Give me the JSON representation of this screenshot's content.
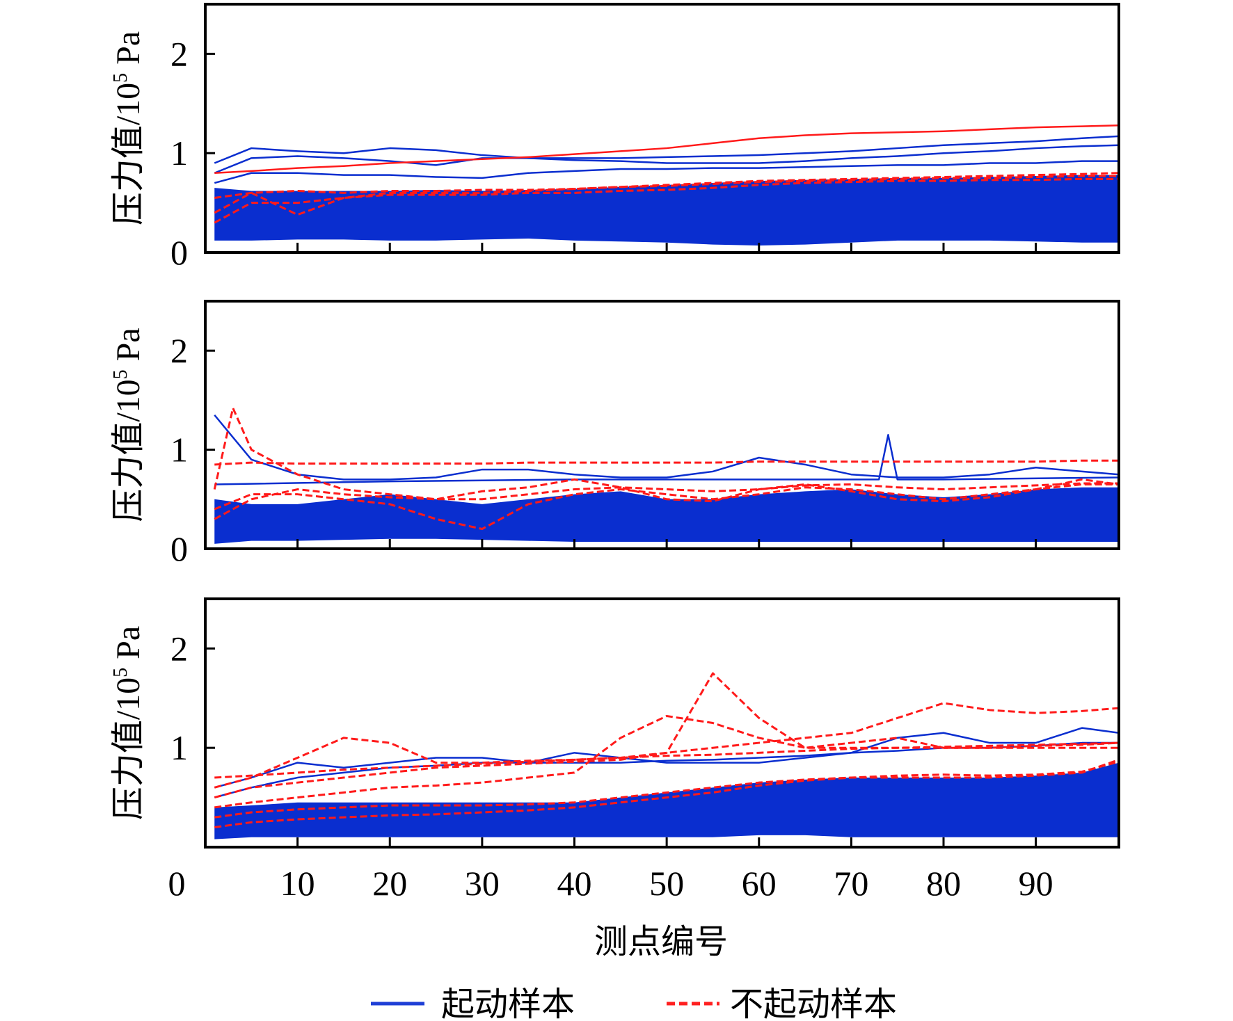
{
  "chart_data": {
    "type": "line",
    "xlabel": "测点编号",
    "ylabel_parts": [
      "压力值/10",
      "5",
      " Pa"
    ],
    "xlim": [
      0,
      99
    ],
    "ylim": [
      0,
      2.5
    ],
    "x_ticks": [
      "0",
      "10",
      "20",
      "30",
      "40",
      "50",
      "60",
      "70",
      "80",
      "90"
    ],
    "x_tick_values": [
      0,
      10,
      20,
      30,
      40,
      50,
      60,
      70,
      80,
      90
    ],
    "y_tick_labels": [
      "0",
      "1",
      "2"
    ],
    "legend": [
      {
        "label": "起动样本",
        "color": "#1f3fd6",
        "style": "solid"
      },
      {
        "label": "不起动样本",
        "color": "#ff2020",
        "style": "dashed"
      }
    ],
    "legend_position": "bottom-center",
    "colors": {
      "start": "#0a2ecf",
      "nostart": "#ff1a1a"
    },
    "x": [
      1,
      5,
      10,
      15,
      20,
      25,
      30,
      35,
      40,
      45,
      50,
      55,
      60,
      65,
      70,
      75,
      80,
      85,
      90,
      95,
      99
    ],
    "panels": [
      {
        "blue_band": {
          "lower": [
            0.12,
            0.12,
            0.13,
            0.13,
            0.12,
            0.12,
            0.13,
            0.14,
            0.12,
            0.11,
            0.1,
            0.08,
            0.07,
            0.08,
            0.1,
            0.12,
            0.12,
            0.12,
            0.11,
            0.1,
            0.1
          ],
          "upper": [
            0.65,
            0.62,
            0.62,
            0.62,
            0.62,
            0.63,
            0.62,
            0.63,
            0.64,
            0.66,
            0.68,
            0.7,
            0.72,
            0.73,
            0.74,
            0.75,
            0.75,
            0.76,
            0.77,
            0.78,
            0.78
          ]
        },
        "blue_lines": [
          {
            "y": [
              0.9,
              1.05,
              1.02,
              1.0,
              1.05,
              1.03,
              0.98,
              0.95,
              0.95,
              0.95,
              0.96,
              0.97,
              0.98,
              1.0,
              1.02,
              1.05,
              1.08,
              1.1,
              1.12,
              1.15,
              1.17
            ]
          },
          {
            "y": [
              0.8,
              0.95,
              0.97,
              0.95,
              0.92,
              0.88,
              0.95,
              0.95,
              0.93,
              0.92,
              0.9,
              0.9,
              0.9,
              0.92,
              0.95,
              0.97,
              1.0,
              1.02,
              1.05,
              1.07,
              1.08
            ]
          },
          {
            "y": [
              0.7,
              0.8,
              0.8,
              0.78,
              0.78,
              0.76,
              0.75,
              0.8,
              0.82,
              0.84,
              0.84,
              0.85,
              0.85,
              0.86,
              0.87,
              0.88,
              0.88,
              0.9,
              0.9,
              0.92,
              0.92
            ]
          }
        ],
        "red_lines": [
          {
            "y": [
              0.8,
              0.82,
              0.85,
              0.87,
              0.9,
              0.92,
              0.94,
              0.96,
              0.99,
              1.02,
              1.05,
              1.1,
              1.15,
              1.18,
              1.2,
              1.21,
              1.22,
              1.24,
              1.26,
              1.27,
              1.28
            ]
          },
          {
            "y": [
              0.55,
              0.6,
              0.62,
              0.6,
              0.62,
              0.62,
              0.63,
              0.63,
              0.64,
              0.66,
              0.68,
              0.7,
              0.72,
              0.73,
              0.74,
              0.75,
              0.76,
              0.77,
              0.78,
              0.79,
              0.8
            ]
          },
          {
            "y": [
              0.4,
              0.6,
              0.38,
              0.55,
              0.6,
              0.6,
              0.6,
              0.62,
              0.64,
              0.66,
              0.67,
              0.69,
              0.71,
              0.72,
              0.73,
              0.74,
              0.75,
              0.75,
              0.76,
              0.77,
              0.77
            ]
          },
          {
            "y": [
              0.3,
              0.5,
              0.5,
              0.55,
              0.58,
              0.58,
              0.58,
              0.6,
              0.6,
              0.62,
              0.63,
              0.65,
              0.68,
              0.7,
              0.71,
              0.72,
              0.72,
              0.73,
              0.73,
              0.74,
              0.74
            ]
          }
        ]
      },
      {
        "blue_band": {
          "lower": [
            0.05,
            0.08,
            0.08,
            0.09,
            0.1,
            0.1,
            0.09,
            0.08,
            0.07,
            0.07,
            0.07,
            0.07,
            0.07,
            0.07,
            0.07,
            0.07,
            0.07,
            0.07,
            0.07,
            0.07,
            0.07
          ],
          "upper": [
            0.5,
            0.45,
            0.45,
            0.5,
            0.55,
            0.5,
            0.45,
            0.5,
            0.55,
            0.58,
            0.5,
            0.5,
            0.55,
            0.58,
            0.6,
            0.55,
            0.52,
            0.55,
            0.6,
            0.62,
            0.62
          ]
        },
        "blue_lines": [
          {
            "y": [
              1.35,
              0.9,
              0.75,
              0.7,
              0.7,
              0.72,
              0.8,
              0.8,
              0.75,
              0.72,
              0.72,
              0.78,
              0.92,
              0.85,
              0.75,
              0.72,
              0.72,
              0.75,
              0.82,
              0.78,
              0.75
            ]
          },
          {
            "x": [
              1,
              20,
              40,
              60,
              70,
              73,
              74,
              75,
              80,
              99
            ],
            "y": [
              0.65,
              0.68,
              0.7,
              0.7,
              0.7,
              0.7,
              1.15,
              0.7,
              0.7,
              0.72
            ]
          }
        ],
        "red_lines": [
          {
            "y": [
              0.85,
              0.87,
              0.86,
              0.86,
              0.86,
              0.86,
              0.86,
              0.87,
              0.87,
              0.87,
              0.87,
              0.87,
              0.88,
              0.88,
              0.88,
              0.88,
              0.88,
              0.88,
              0.88,
              0.89,
              0.89
            ]
          },
          {
            "x": [
              1,
              3,
              5,
              10,
              15,
              20,
              25,
              30,
              35,
              40,
              45,
              50,
              55,
              60,
              65,
              70,
              75,
              80,
              85,
              90,
              95,
              99
            ],
            "y": [
              0.6,
              1.42,
              1.0,
              0.75,
              0.6,
              0.55,
              0.5,
              0.58,
              0.62,
              0.7,
              0.62,
              0.5,
              0.48,
              0.6,
              0.65,
              0.58,
              0.5,
              0.48,
              0.52,
              0.6,
              0.7,
              0.65
            ]
          },
          {
            "y": [
              0.4,
              0.55,
              0.55,
              0.5,
              0.45,
              0.3,
              0.2,
              0.45,
              0.55,
              0.6,
              0.55,
              0.5,
              0.55,
              0.62,
              0.6,
              0.55,
              0.5,
              0.55,
              0.6,
              0.65,
              0.65
            ]
          },
          {
            "y": [
              0.3,
              0.5,
              0.6,
              0.55,
              0.52,
              0.5,
              0.5,
              0.55,
              0.6,
              0.62,
              0.6,
              0.58,
              0.6,
              0.64,
              0.65,
              0.62,
              0.6,
              0.62,
              0.64,
              0.66,
              0.66
            ]
          }
        ]
      },
      {
        "blue_band": {
          "lower": [
            0.08,
            0.1,
            0.1,
            0.1,
            0.1,
            0.1,
            0.1,
            0.1,
            0.1,
            0.1,
            0.1,
            0.1,
            0.12,
            0.12,
            0.1,
            0.1,
            0.1,
            0.1,
            0.1,
            0.1,
            0.1
          ],
          "upper": [
            0.4,
            0.42,
            0.45,
            0.45,
            0.45,
            0.45,
            0.45,
            0.45,
            0.45,
            0.5,
            0.55,
            0.6,
            0.65,
            0.68,
            0.7,
            0.7,
            0.7,
            0.7,
            0.72,
            0.75,
            0.85
          ]
        },
        "blue_lines": [
          {
            "y": [
              0.6,
              0.7,
              0.85,
              0.8,
              0.85,
              0.9,
              0.9,
              0.85,
              0.95,
              0.9,
              0.85,
              0.85,
              0.85,
              0.9,
              0.95,
              1.1,
              1.15,
              1.05,
              1.05,
              1.2,
              1.15
            ]
          },
          {
            "y": [
              0.5,
              0.6,
              0.7,
              0.75,
              0.8,
              0.82,
              0.85,
              0.85,
              0.85,
              0.85,
              0.87,
              0.88,
              0.9,
              0.92,
              0.95,
              0.97,
              1.0,
              1.0,
              1.02,
              1.05,
              1.05
            ]
          }
        ],
        "red_lines": [
          {
            "y": [
              0.7,
              0.72,
              0.75,
              0.78,
              0.8,
              0.82,
              0.84,
              0.86,
              0.88,
              0.9,
              0.92,
              0.93,
              0.95,
              0.97,
              0.99,
              1.0,
              1.01,
              1.02,
              1.03,
              1.04,
              1.05
            ]
          },
          {
            "y": [
              0.6,
              0.7,
              0.9,
              1.1,
              1.05,
              0.85,
              0.85,
              0.87,
              0.88,
              0.9,
              0.95,
              1.0,
              1.05,
              1.1,
              1.15,
              1.3,
              1.45,
              1.38,
              1.35,
              1.37,
              1.4
            ]
          },
          {
            "y": [
              0.5,
              0.6,
              0.65,
              0.7,
              0.75,
              0.8,
              0.82,
              0.84,
              0.86,
              0.88,
              0.95,
              1.75,
              1.3,
              1.0,
              1.05,
              1.1,
              1.0,
              1.0,
              1.02,
              1.03,
              1.05
            ]
          },
          {
            "y": [
              0.4,
              0.45,
              0.5,
              0.55,
              0.6,
              0.62,
              0.65,
              0.7,
              0.75,
              1.1,
              1.32,
              1.25,
              1.1,
              1.0,
              1.0,
              1.0,
              1.0,
              1.0,
              1.0,
              1.0,
              1.0
            ]
          },
          {
            "y": [
              0.3,
              0.35,
              0.38,
              0.4,
              0.42,
              0.42,
              0.42,
              0.43,
              0.45,
              0.5,
              0.55,
              0.6,
              0.65,
              0.68,
              0.7,
              0.7,
              0.7,
              0.7,
              0.72,
              0.75,
              0.88
            ]
          },
          {
            "y": [
              0.2,
              0.25,
              0.28,
              0.3,
              0.32,
              0.33,
              0.35,
              0.37,
              0.4,
              0.45,
              0.5,
              0.55,
              0.62,
              0.67,
              0.7,
              0.72,
              0.73,
              0.72,
              0.73,
              0.76,
              0.86
            ]
          }
        ]
      }
    ]
  }
}
